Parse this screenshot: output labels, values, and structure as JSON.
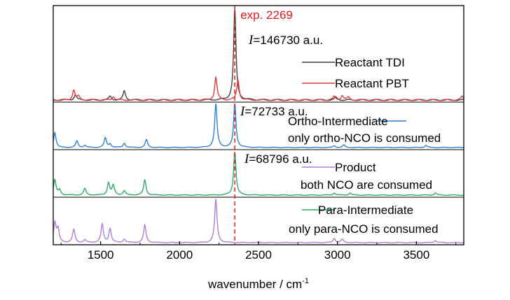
{
  "chart_data": {
    "type": "line",
    "xlabel": "wavenumber / cm",
    "xlabel_sup": "-1",
    "xlim": [
      1200,
      3800
    ],
    "xticks": [
      1500,
      2000,
      2500,
      3000,
      3500
    ],
    "xtick_labels": [
      "1500",
      "2000",
      "2500",
      "3000",
      "3500"
    ],
    "yaxis_ticks": false,
    "stacked_panels": 4,
    "reference_line": {
      "x": 2350,
      "label": "exp. 2269",
      "color": "#e4181c"
    },
    "intensity_annotations": [
      {
        "symbol": "I",
        "text": "=146730 a.u.",
        "panel": 0
      },
      {
        "symbol": "I",
        "text": "=72733 a.u.",
        "panel": 1
      },
      {
        "symbol": "I",
        "text": "=68796 a.u.",
        "panel": 2
      }
    ],
    "series": [
      {
        "name": "Reactant  TDI",
        "color": "#404040",
        "panel": 0,
        "legend_lines": [
          "Reactant  TDI"
        ],
        "peaks": [
          [
            1340,
            0.06
          ],
          [
            1560,
            0.04
          ],
          [
            1650,
            0.1
          ],
          [
            2350,
            1.0
          ],
          [
            2990,
            0.03
          ]
        ]
      },
      {
        "name": "Reactant  PBT",
        "color": "#e23a3a",
        "panel": 0,
        "legend_lines": [
          "Reactant  PBT"
        ],
        "peaks": [
          [
            1330,
            0.11
          ],
          [
            1360,
            0.04
          ],
          [
            1580,
            0.04
          ],
          [
            2230,
            0.25
          ],
          [
            2370,
            0.22
          ],
          [
            2980,
            0.04
          ],
          [
            3030,
            0.05
          ],
          [
            3070,
            0.03
          ],
          [
            3790,
            0.04
          ]
        ]
      },
      {
        "name": "Ortho-Intermediate",
        "color": "#2f80d8",
        "panel": 1,
        "legend_lines": [
          "Ortho-Intermediate",
          "only ortho-NCO is consumed"
        ],
        "peaks": [
          [
            1210,
            0.35
          ],
          [
            1350,
            0.15
          ],
          [
            1400,
            0.05
          ],
          [
            1530,
            0.22
          ],
          [
            1560,
            0.08
          ],
          [
            1650,
            0.1
          ],
          [
            1790,
            0.18
          ],
          [
            2230,
            1.0
          ],
          [
            2350,
            1.0
          ],
          [
            2980,
            0.04
          ],
          [
            3040,
            0.06
          ],
          [
            3560,
            0.05
          ]
        ]
      },
      {
        "name": "Product",
        "color": "#b07fd6",
        "panel": 3,
        "legend_lines": [
          "Product",
          "both NCO are consumed"
        ],
        "peaks": [
          [
            1210,
            0.45
          ],
          [
            1230,
            0.3
          ],
          [
            1330,
            0.3
          ],
          [
            1400,
            0.06
          ],
          [
            1510,
            0.42
          ],
          [
            1560,
            0.32
          ],
          [
            1650,
            0.08
          ],
          [
            1780,
            0.4
          ],
          [
            2230,
            1.0
          ],
          [
            2980,
            0.1
          ],
          [
            3030,
            0.08
          ],
          [
            3620,
            0.05
          ]
        ]
      },
      {
        "name": "Para-Intermediate",
        "color": "#2faa6a",
        "panel": 2,
        "legend_lines": [
          "Para-Intermediate",
          "only para-NCO is consumed"
        ],
        "peaks": [
          [
            1210,
            0.35
          ],
          [
            1240,
            0.12
          ],
          [
            1400,
            0.15
          ],
          [
            1550,
            0.28
          ],
          [
            1580,
            0.22
          ],
          [
            1650,
            0.1
          ],
          [
            1780,
            0.35
          ],
          [
            2350,
            1.0
          ],
          [
            2980,
            0.05
          ],
          [
            3080,
            0.05
          ],
          [
            3620,
            0.05
          ]
        ]
      }
    ]
  }
}
